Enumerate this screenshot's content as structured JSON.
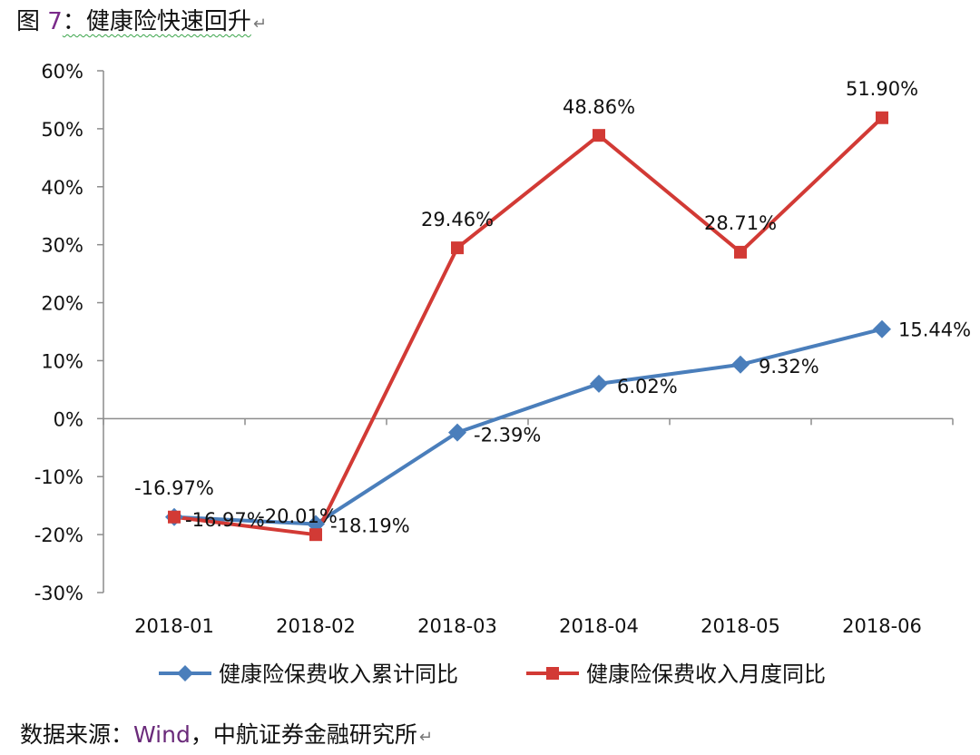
{
  "title": {
    "prefix": "图 ",
    "number": "7",
    "text": "：健康险快速回升",
    "return_mark": "↵"
  },
  "source": {
    "prefix": "数据来源：",
    "wind": "Wind",
    "text": "，中航证券金融研究所",
    "return_mark": "↵"
  },
  "chart_data": {
    "type": "line",
    "title": "健康险快速回升",
    "categories": [
      "2018-01",
      "2018-02",
      "2018-03",
      "2018-04",
      "2018-05",
      "2018-06"
    ],
    "ylim": [
      -30,
      60
    ],
    "yticks": [
      -30,
      -20,
      -10,
      0,
      10,
      20,
      30,
      40,
      50,
      60
    ],
    "ytick_labels": [
      "-30%",
      "-20%",
      "-10%",
      "0%",
      "10%",
      "20%",
      "30%",
      "40%",
      "50%",
      "60%"
    ],
    "series": [
      {
        "name": "健康险保费收入累计同比",
        "color": "#4a7ebb",
        "marker": "diamond",
        "values": [
          -16.97,
          -18.19,
          -2.39,
          6.02,
          9.32,
          15.44
        ],
        "labels": [
          "-16.97%",
          "-18.19%",
          "-2.39%",
          "6.02%",
          "9.32%",
          "15.44%"
        ]
      },
      {
        "name": "健康险保费收入月度同比",
        "color": "#d23a35",
        "marker": "square",
        "values": [
          -16.97,
          -20.01,
          29.46,
          48.86,
          28.71,
          51.9
        ],
        "labels": [
          "-16.97%",
          "-20.01%",
          "29.46%",
          "48.86%",
          "28.71%",
          "51.90%"
        ]
      }
    ],
    "legend_position": "bottom"
  }
}
